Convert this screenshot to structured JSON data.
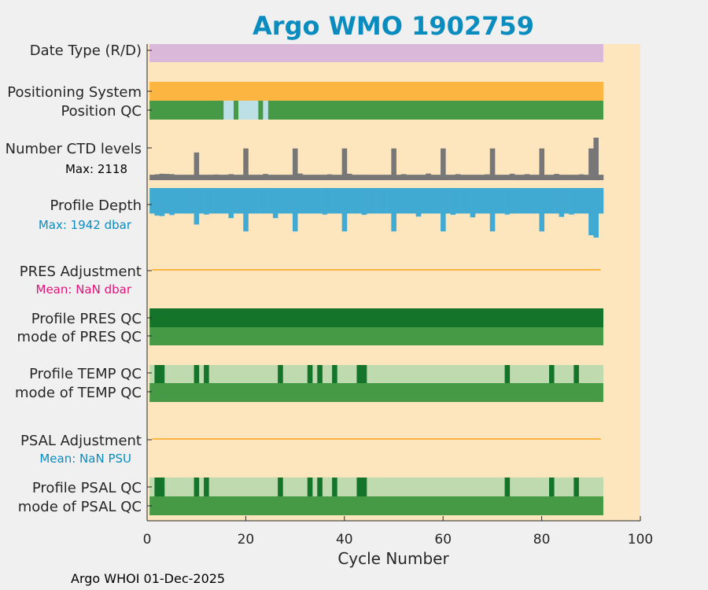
{
  "title": "Argo WMO 1902759",
  "footer": "Argo WHOI 01-Dec-2025",
  "colors": {
    "background": "#fde6bd",
    "title": "#0a8cbf",
    "dateType": "#d9b8da",
    "positioning": "#fdb541",
    "qcGood": "#469a46",
    "qcDark": "#13742a",
    "qcLight": "#bedaae",
    "qcGap": "#bde0e6",
    "ctd": "#777777",
    "depth": "#41aad2",
    "adjLine": "#fdb541",
    "magenta": "#e2127a",
    "blueText": "#0a8cbf"
  },
  "chart_data": {
    "type": "bar",
    "xlabel": "Cycle Number",
    "xlim": [
      0,
      100
    ],
    "xticks": [
      "0",
      "20",
      "40",
      "60",
      "80",
      "100"
    ],
    "n_cycles": 92,
    "rows": {
      "date_type": {
        "label": "Date Type (R/D)"
      },
      "positioning": {
        "label": "Positioning System"
      },
      "position_qc": {
        "label": "Position QC",
        "missing_cycles": [
          16,
          17,
          19,
          20,
          21,
          22,
          24
        ]
      },
      "ctd": {
        "label": "Number CTD levels",
        "sublabel": "Max: 2118",
        "max": 2118,
        "typical": 270,
        "spikes": {
          "10": 1380,
          "20": 1580,
          "30": 1580,
          "40": 1580,
          "50": 1580,
          "60": 1580,
          "70": 1580,
          "80": 1580,
          "90": 1580,
          "91": 2118
        },
        "variations": {
          "2": 290,
          "3": 320,
          "4": 310,
          "5": 300,
          "14": 280,
          "17": 300,
          "24": 310,
          "31": 330,
          "37": 290,
          "41": 320,
          "52": 300,
          "57": 330,
          "63": 300,
          "69": 290,
          "74": 320,
          "77": 300,
          "83": 310,
          "88": 290
        }
      },
      "profile_depth": {
        "label": "Profile Depth",
        "sublabel": "Max: 1942 dbar",
        "max": 1942,
        "typical": 1000,
        "deep": {
          "10": 1430,
          "17": 1180,
          "20": 1700,
          "26": 1180,
          "30": 1700,
          "40": 1700,
          "50": 1700,
          "55": 1120,
          "60": 1700,
          "66": 1150,
          "70": 1700,
          "80": 1700,
          "84": 1130,
          "90": 1850,
          "91": 1942
        },
        "shallow": {
          "2": 1080,
          "3": 1100,
          "5": 1060,
          "12": 1040,
          "36": 1040,
          "44": 1050,
          "62": 1050,
          "73": 1040,
          "86": 1040
        }
      },
      "pres_adjustment": {
        "label": "PRES Adjustment",
        "sublabel": "Mean:  NaN dbar"
      },
      "profile_pres_qc": {
        "label": "Profile PRES QC"
      },
      "mode_pres_qc": {
        "label": "mode of PRES QC"
      },
      "profile_temp_qc": {
        "label": "Profile TEMP QC",
        "dark_cycles": [
          2,
          3,
          10,
          12,
          27,
          33,
          35,
          38,
          43,
          44,
          73,
          82,
          87
        ]
      },
      "mode_temp_qc": {
        "label": "mode of TEMP QC"
      },
      "psal_adjustment": {
        "label": "PSAL Adjustment",
        "sublabel": "Mean:  NaN PSU"
      },
      "profile_psal_qc": {
        "label": "Profile PSAL QC",
        "dark_cycles": [
          2,
          3,
          10,
          12,
          27,
          33,
          35,
          38,
          43,
          44,
          73,
          82,
          87
        ]
      },
      "mode_psal_qc": {
        "label": "mode of PSAL QC"
      }
    }
  }
}
